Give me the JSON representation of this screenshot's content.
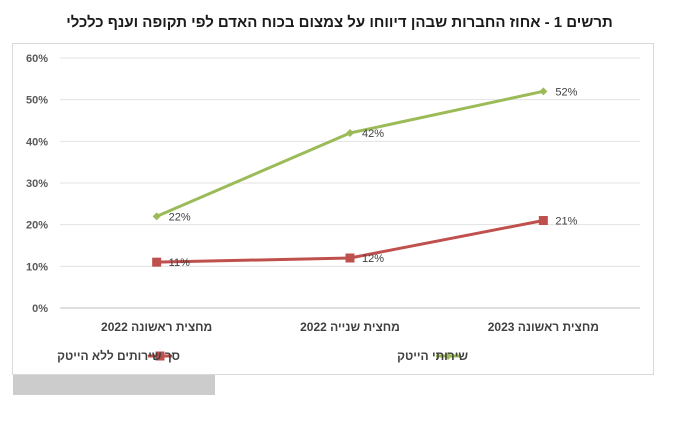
{
  "chart_data": {
    "type": "line",
    "title": "תרשים 1 - אחוז החברות שבהן דיווחו על צמצום בכוח האדם לפי תקופה וענף כלכלי",
    "categories": [
      "מחצית ראשונה 2022",
      "מחצית שנייה 2022",
      "מחצית ראשונה 2023"
    ],
    "ylim": [
      0,
      60
    ],
    "yticks": [
      "0%",
      "10%",
      "20%",
      "30%",
      "40%",
      "50%",
      "60%"
    ],
    "grid": true,
    "legend_position": "bottom",
    "series": [
      {
        "name": "שירותי  הייטק",
        "values": [
          22,
          42,
          52
        ],
        "labels": [
          "22%",
          "42%",
          "52%"
        ],
        "color": "#9bbb59",
        "marker": "diamond"
      },
      {
        "name": "סך שירותים  ללא הייטק",
        "values": [
          11,
          12,
          21
        ],
        "labels": [
          "11%",
          "12%",
          "21%"
        ],
        "color": "#c0504d",
        "marker": "square"
      }
    ]
  }
}
